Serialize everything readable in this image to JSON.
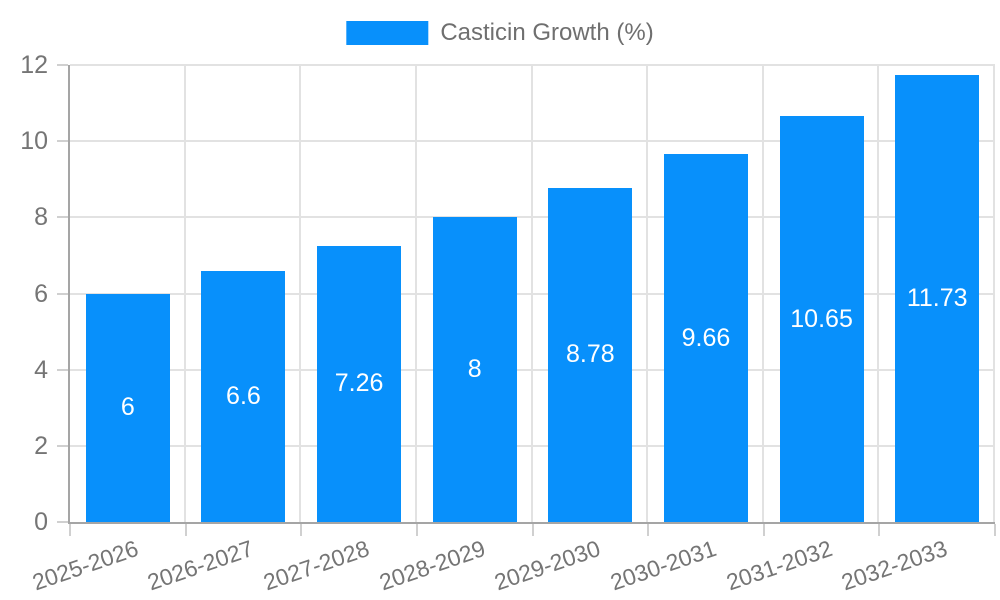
{
  "legend": {
    "label": "Casticin Growth (%)"
  },
  "colors": {
    "bar": "#0890fb",
    "grid": "#e2e2e2",
    "axis": "#a5a5a5",
    "tick": "#d0d0d0",
    "axis_text": "#757575",
    "legend_text": "#6f6f6f",
    "value_text": "#ffffff",
    "background": "#ffffff"
  },
  "chart_data": {
    "type": "bar",
    "title": "Casticin Growth (%)",
    "categories": [
      "2025-2026",
      "2026-2027",
      "2027-2028",
      "2028-2029",
      "2029-2030",
      "2030-2031",
      "2031-2032",
      "2032-2033"
    ],
    "values": [
      6,
      6.6,
      7.26,
      8,
      8.78,
      9.66,
      10.65,
      11.73
    ],
    "value_labels": [
      "6",
      "6.6",
      "7.26",
      "8",
      "8.78",
      "9.66",
      "10.65",
      "11.73"
    ],
    "xlabel": "",
    "ylabel": "",
    "ylim": [
      0,
      12
    ],
    "yticks": [
      0,
      2,
      4,
      6,
      8,
      10,
      12
    ],
    "grid": true,
    "legend_position": "top-center",
    "bar_label_position": "inside-center",
    "x_label_rotation_deg": -19
  }
}
